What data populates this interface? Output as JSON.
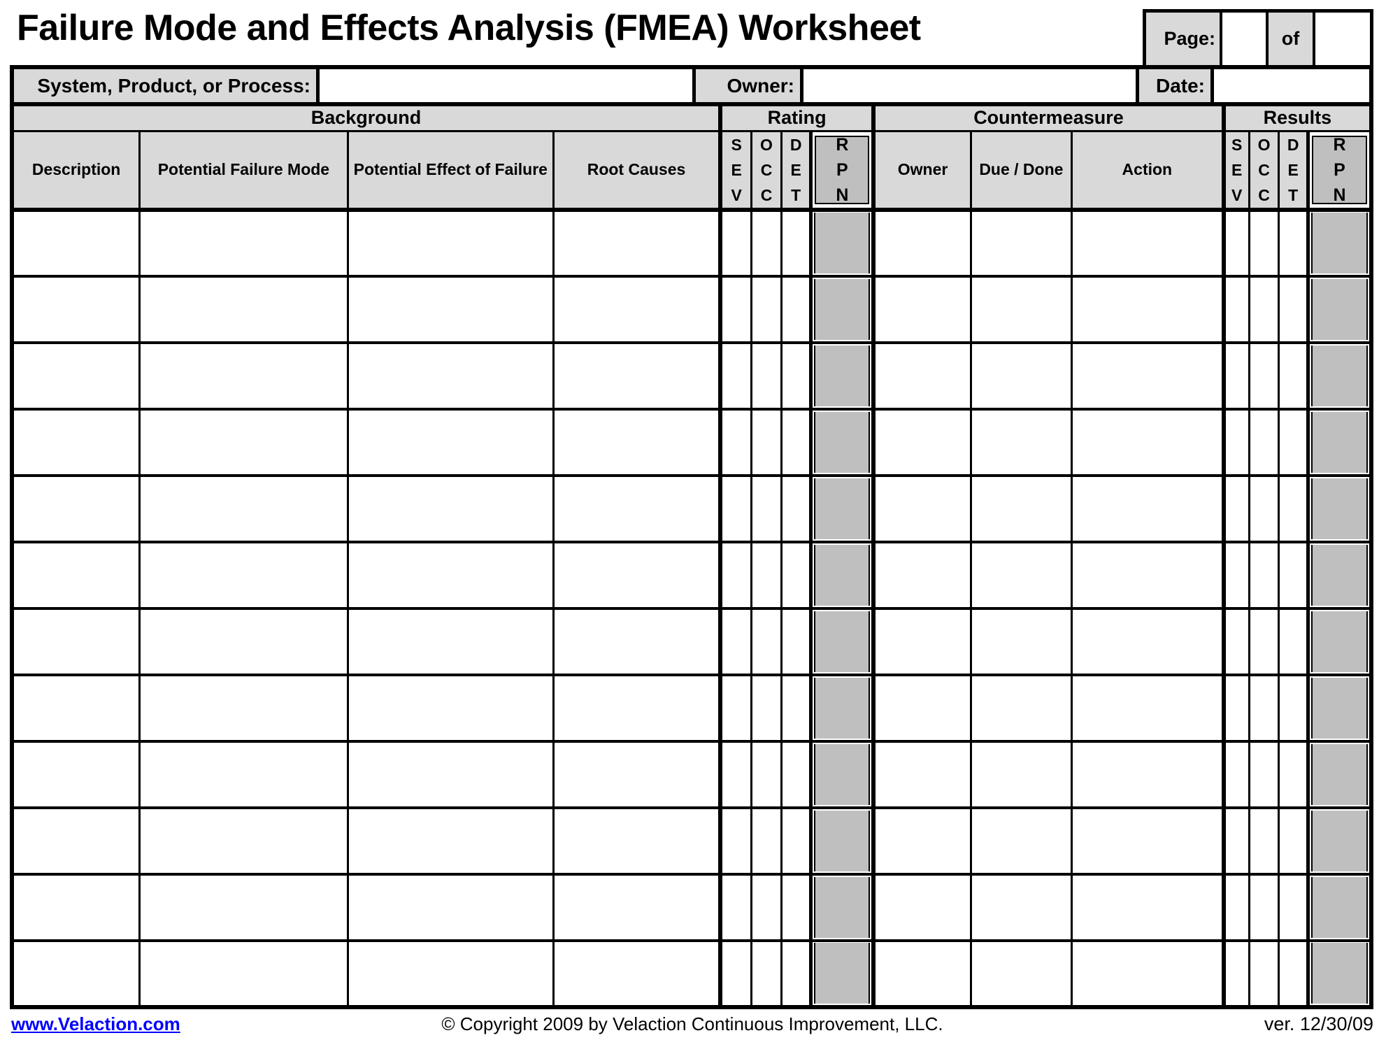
{
  "title": "Failure Mode and Effects Analysis (FMEA) Worksheet",
  "page_box": {
    "page_label": "Page:",
    "page_value": "",
    "of_label": "of",
    "of_value": ""
  },
  "info": {
    "system_label": "System, Product, or Process:",
    "system_value": "",
    "owner_label": "Owner:",
    "owner_value": "",
    "date_label": "Date:",
    "date_value": ""
  },
  "table": {
    "sections": {
      "background": "Background",
      "rating": "Rating",
      "countermeasure": "Countermeasure",
      "results": "Results"
    },
    "columns": {
      "description": "Description",
      "failure_mode": "Potential Failure Mode",
      "effect": "Potential Effect of Failure",
      "root_causes": "Root Causes",
      "sev": "S\nE\nV",
      "occ": "O\nC\nC",
      "det": "D\nE\nT",
      "rpn": "R\nP\nN",
      "owner": "Owner",
      "due_done": "Due / Done",
      "action": "Action"
    },
    "row_count": 12
  },
  "footer": {
    "link": "www.Velaction.com",
    "copyright": "© Copyright 2009 by Velaction Continuous Improvement, LLC.",
    "version": "ver. 12/30/09"
  },
  "colors": {
    "header_gray": "#d9d9d9",
    "rpn_gray": "#bfbfbf",
    "border": "#000000",
    "link_blue": "#0000ff"
  }
}
